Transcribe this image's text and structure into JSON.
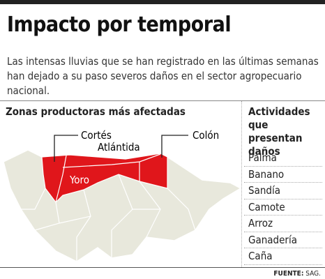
{
  "header": {
    "title": "Impacto por temporal",
    "description": "Las intensas lluvias que se han registrado en las últimas semanas han dejado a su paso severos daños en el sector agropecuario nacional."
  },
  "map": {
    "title": "Zonas productoras más afectadas",
    "labels": [
      "Cortés",
      "Atlántida",
      "Colón",
      "Yoro"
    ]
  },
  "activities": {
    "title": "Actividades que presentan daños",
    "items": [
      "Palma",
      "Banano",
      "Sandía",
      "Camote",
      "Arroz",
      "Ganadería",
      "Caña"
    ]
  },
  "source": {
    "label": "FUENTE:",
    "value": "SAG."
  }
}
